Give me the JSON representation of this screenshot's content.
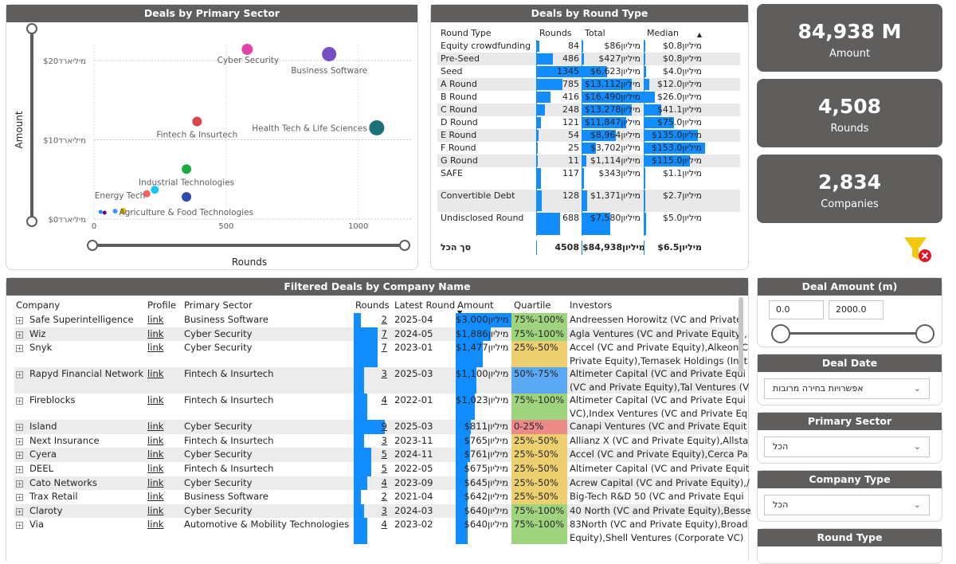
{
  "scatter": {
    "title": "Deals by Primary Sector",
    "xlabel": "Rounds",
    "ylabel": "Amount",
    "yticks": [
      "$20מיליארד",
      "$10מיליארד",
      "$0מיליארד"
    ],
    "xticks": [
      "0",
      "500",
      "1000"
    ]
  },
  "chart_data": {
    "type": "scatter",
    "xlabel": "Rounds",
    "ylabel": "Amount",
    "xlim": [
      0,
      1200
    ],
    "ylim": [
      0,
      22
    ],
    "points": [
      {
        "label": "Cyber Security",
        "x": 580,
        "y": 21.4,
        "color": "#e66c37",
        "dot": "#e044a7"
      },
      {
        "label": "Business Software",
        "x": 890,
        "y": 20.8,
        "dot": "#744ec2"
      },
      {
        "label": "Fintech & Insurtech",
        "x": 390,
        "y": 12.3,
        "dot": "#d64550"
      },
      {
        "label": "Health Tech & Life Sciences",
        "x": 1070,
        "y": 11.5,
        "dot": "#197278"
      },
      {
        "label": "Industrial Technologies",
        "x": 350,
        "y": 6.3,
        "dot": "#1aab40"
      },
      {
        "label": "",
        "x": 230,
        "y": 3.7,
        "dot": "#15c6f4"
      },
      {
        "label": "",
        "x": 350,
        "y": 2.8,
        "dot": "#3049ad"
      },
      {
        "label": "Energy Tech",
        "x": 200,
        "y": 3.2,
        "dot": "#fd625e"
      },
      {
        "label": "Agriculture & Food Technologies",
        "x": 110,
        "y": 1.0,
        "dot": "#d9b300"
      },
      {
        "label": "",
        "x": 80,
        "y": 1.0,
        "dot": "#4092ff"
      },
      {
        "label": "",
        "x": 40,
        "y": 0.8,
        "dot": "#6b007b"
      },
      {
        "label": "",
        "x": 25,
        "y": 0.9,
        "dot": "#118dff"
      }
    ]
  },
  "rounds": {
    "title": "Deals by Round Type",
    "headers": [
      "Round Type",
      "Rounds",
      "Total",
      "Median"
    ],
    "rows": [
      {
        "type": "Equity crowdfunding",
        "rounds": "84",
        "total": "$86מיליון",
        "median": "$0.8מיליון",
        "r": 0.06,
        "t": 0.005,
        "m": 0.005
      },
      {
        "type": "Pre-Seed",
        "rounds": "486",
        "total": "$427מיליון",
        "median": "$0.8מיליון",
        "r": 0.36,
        "t": 0.03,
        "m": 0.005
      },
      {
        "type": "Seed",
        "rounds": "1345",
        "total": "$6,623מיליון",
        "median": "$4.0מיליון",
        "r": 1.0,
        "t": 0.4,
        "m": 0.03
      },
      {
        "type": "A Round",
        "rounds": "785",
        "total": "$13,112מיליון",
        "median": "$12.0מיליון",
        "r": 0.58,
        "t": 0.8,
        "m": 0.08
      },
      {
        "type": "B Round",
        "rounds": "416",
        "total": "$16,490מיליון",
        "median": "$26.0מיליון",
        "r": 0.31,
        "t": 1.0,
        "m": 0.17
      },
      {
        "type": "C Round",
        "rounds": "248",
        "total": "$13,278מיליון",
        "median": "$41.1מיליון",
        "r": 0.18,
        "t": 0.81,
        "m": 0.27
      },
      {
        "type": "D Round",
        "rounds": "121",
        "total": "$11,847מיליון",
        "median": "$75.0מיליון",
        "r": 0.09,
        "t": 0.72,
        "m": 0.49
      },
      {
        "type": "E Round",
        "rounds": "54",
        "total": "$8,964מיליון",
        "median": "$135.0מיליון",
        "r": 0.04,
        "t": 0.54,
        "m": 0.88
      },
      {
        "type": "F Round",
        "rounds": "25",
        "total": "$3,702מיליון",
        "median": "$153.0מיליון",
        "r": 0.02,
        "t": 0.22,
        "m": 1.0
      },
      {
        "type": "G Round",
        "rounds": "11",
        "total": "$1,114מיליון",
        "median": "$115.0מיליון",
        "r": 0.01,
        "t": 0.07,
        "m": 0.75
      },
      {
        "type": "SAFE",
        "rounds": "117",
        "total": "$343מיליון",
        "median": "$1.1מיליון",
        "r": 0.09,
        "t": 0.02,
        "m": 0.007
      },
      {
        "type": "Convertible Debt",
        "rounds": "128",
        "total": "$1,371מיליון",
        "median": "$2.7מיליון",
        "r": 0.1,
        "t": 0.08,
        "m": 0.018
      },
      {
        "type": "Undisclosed Round",
        "rounds": "688",
        "total": "$7,580מיליון",
        "median": "$5.0מיליון",
        "r": 0.51,
        "t": 0.46,
        "m": 0.03
      }
    ],
    "total": {
      "type": "סך הכל",
      "rounds": "4508",
      "total": "$84,938מיליון",
      "median": "$6.5מיליון"
    }
  },
  "kpis": [
    {
      "value": "84,938 M",
      "label": "Amount"
    },
    {
      "value": "4,508",
      "label": "Rounds"
    },
    {
      "value": "2,834",
      "label": "Companies"
    }
  ],
  "deals": {
    "title": "Filtered Deals by Company Name",
    "headers": [
      "Company",
      "Profile",
      "Primary Sector",
      "Rounds",
      "Latest Round",
      "Amount",
      "Quartile",
      "Investors"
    ],
    "rows": [
      {
        "company": "Safe Superintelligence",
        "profile": "link",
        "sector": "Business Software",
        "rounds": "2",
        "latest": "2025-04",
        "amount": "$3,000מיליון",
        "quartile": "75%-100%",
        "investors": "Andreessen Horowitz (VC and Private",
        "h": 1,
        "rb": 0.22,
        "ab": 1.0
      },
      {
        "company": "Wiz",
        "profile": "link",
        "sector": "Cyber Security",
        "rounds": "7",
        "latest": "2024-05",
        "amount": "$1,886מיליון",
        "quartile": "75%-100%",
        "investors": "Agla Ventures (VC and Private Equity),",
        "h": 1,
        "rb": 0.78,
        "ab": 0.63
      },
      {
        "company": "Snyk",
        "profile": "link",
        "sector": "Cyber Security",
        "rounds": "7",
        "latest": "2023-01",
        "amount": "$1,477מיליון",
        "quartile": "25%-50%",
        "investors": "Accel (VC and Private Equity),Alkeon C\nPrivate Equity),Temasek Holdings (Inst",
        "h": 2,
        "rb": 0.78,
        "ab": 0.49
      },
      {
        "company": "Rapyd Financial Network",
        "profile": "link",
        "sector": "Fintech & Insurtech",
        "rounds": "3",
        "latest": "2025-03",
        "amount": "$1,100מיליון",
        "quartile": "50%-75%",
        "investors": "Altimeter Capital (VC and Private Equi\n(VC and Private Equity),Tal Ventures (V",
        "h": 2,
        "rb": 0.33,
        "ab": 0.37
      },
      {
        "company": "Fireblocks",
        "profile": "link",
        "sector": "Fintech & Insurtech",
        "rounds": "4",
        "latest": "2022-01",
        "amount": "$1,023מיליון",
        "quartile": "75%-100%",
        "investors": "Altimeter Capital (VC and Private Equi\nVC),Index Ventures (VC and Private Eq",
        "h": 2,
        "rb": 0.44,
        "ab": 0.34
      },
      {
        "company": "Island",
        "profile": "link",
        "sector": "Cyber Security",
        "rounds": "9",
        "latest": "2025-03",
        "amount": "$811מיליון",
        "quartile": "0-25%",
        "investors": "Canapi Ventures (VC and Private Equit",
        "h": 1,
        "rb": 1.0,
        "ab": 0.27
      },
      {
        "company": "Next Insurance",
        "profile": "link",
        "sector": "Fintech & Insurtech",
        "rounds": "3",
        "latest": "2023-11",
        "amount": "$765מיליון",
        "quartile": "25%-50%",
        "investors": "Allianz X (VC and Private Equity),Allsta",
        "h": 1,
        "rb": 0.33,
        "ab": 0.26
      },
      {
        "company": "Cyera",
        "profile": "link",
        "sector": "Cyber Security",
        "rounds": "5",
        "latest": "2024-11",
        "amount": "$761מיליון",
        "quartile": "25%-50%",
        "investors": "Accel (VC and Private Equity),Cerca Pa",
        "h": 1,
        "rb": 0.56,
        "ab": 0.25
      },
      {
        "company": "DEEL",
        "profile": "link",
        "sector": "Fintech & Insurtech",
        "rounds": "5",
        "latest": "2022-05",
        "amount": "$675מיליון",
        "quartile": "25%-50%",
        "investors": "Altimeter Capital (VC and Private Equit",
        "h": 1,
        "rb": 0.56,
        "ab": 0.22
      },
      {
        "company": "Cato Networks",
        "profile": "link",
        "sector": "Cyber Security",
        "rounds": "4",
        "latest": "2023-09",
        "amount": "$645מיליון",
        "quartile": "25%-50%",
        "investors": "Acrew Capital (VC and Private Equity),/",
        "h": 1,
        "rb": 0.44,
        "ab": 0.21
      },
      {
        "company": "Trax Retail",
        "profile": "link",
        "sector": "Business Software",
        "rounds": "2",
        "latest": "2021-04",
        "amount": "$642מיליון",
        "quartile": "25%-50%",
        "investors": "Big-Tech R&D 50 (VC and Private Equi",
        "h": 1,
        "rb": 0.22,
        "ab": 0.21
      },
      {
        "company": "Claroty",
        "profile": "link",
        "sector": "Cyber Security",
        "rounds": "3",
        "latest": "2024-03",
        "amount": "$640מיליון",
        "quartile": "75%-100%",
        "investors": "40 North (VC and Private Equity),Besse",
        "h": 1,
        "rb": 0.33,
        "ab": 0.21
      },
      {
        "company": "Via",
        "profile": "link",
        "sector": "Automotive & Mobility Technologies",
        "rounds": "4",
        "latest": "2023-02",
        "amount": "$640מיליון",
        "quartile": "75%-100%",
        "investors": "83North (VC and Private Equity),Broad\nEquity),Shell Ventures (Corporate VC)",
        "h": 2,
        "rb": 0.44,
        "ab": 0.21
      }
    ]
  },
  "quartile_colors": {
    "75%-100%": "#9fd47f",
    "50%-75%": "#5ba9f5",
    "25%-50%": "#ecd070",
    "0-25%": "#ec8a8a"
  },
  "slicers": {
    "deal_amount": {
      "title": "Deal Amount (m)",
      "min": "0.0",
      "max": "2000.0"
    },
    "deal_date": {
      "title": "Deal Date",
      "value": "אפשרויות בחירה מרובות"
    },
    "primary_sector": {
      "title": "Primary Sector",
      "value": "הכל"
    },
    "company_type": {
      "title": "Company Type",
      "value": "הכל"
    },
    "round_type": {
      "title": "Round Type"
    }
  },
  "icons": {
    "filter": "clear-filter-icon"
  }
}
